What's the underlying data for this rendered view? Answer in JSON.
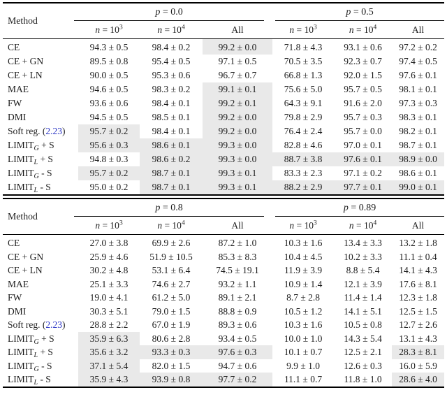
{
  "colors": {
    "highlight": "#e9e9e9",
    "link": "#2b35c5",
    "rule": "#000000",
    "background": "#ffffff"
  },
  "tables": [
    {
      "method_header": "Method",
      "groups": [
        {
          "sym": "p",
          "rest": "= 0.0"
        },
        {
          "sym": "p",
          "rest": "= 0.5"
        }
      ],
      "subcols": [
        {
          "sym": "n",
          "base": "= 10",
          "exp": "3"
        },
        {
          "sym": "n",
          "base": "= 10",
          "exp": "4"
        },
        {
          "label": "All"
        }
      ],
      "rows": [
        {
          "method": {
            "pre": "CE"
          },
          "cells": [
            {
              "v": "94.3 ± 0.5"
            },
            {
              "v": "98.4 ± 0.2"
            },
            {
              "v": "99.2 ± 0.0",
              "hl": true
            },
            {
              "v": "71.8 ± 4.3"
            },
            {
              "v": "93.1 ± 0.6"
            },
            {
              "v": "97.2 ± 0.2"
            }
          ]
        },
        {
          "method": {
            "pre": "CE + GN"
          },
          "cells": [
            {
              "v": "89.5 ± 0.8"
            },
            {
              "v": "95.4 ± 0.5"
            },
            {
              "v": "97.1 ± 0.5"
            },
            {
              "v": "70.5 ± 3.5"
            },
            {
              "v": "92.3 ± 0.7"
            },
            {
              "v": "97.4 ± 0.5"
            }
          ]
        },
        {
          "method": {
            "pre": "CE + LN"
          },
          "cells": [
            {
              "v": "90.0 ± 0.5"
            },
            {
              "v": "95.3 ± 0.6"
            },
            {
              "v": "96.7 ± 0.7"
            },
            {
              "v": "66.8 ± 1.3"
            },
            {
              "v": "92.0 ± 1.5"
            },
            {
              "v": "97.6 ± 0.1"
            }
          ]
        },
        {
          "method": {
            "pre": "MAE"
          },
          "cells": [
            {
              "v": "94.6 ± 0.5"
            },
            {
              "v": "98.3 ± 0.2"
            },
            {
              "v": "99.1 ± 0.1",
              "hl": true
            },
            {
              "v": "75.6 ± 5.0"
            },
            {
              "v": "95.7 ± 0.5"
            },
            {
              "v": "98.1 ± 0.1"
            }
          ]
        },
        {
          "method": {
            "pre": "FW"
          },
          "cells": [
            {
              "v": "93.6 ± 0.6"
            },
            {
              "v": "98.4 ± 0.1"
            },
            {
              "v": "99.2 ± 0.1",
              "hl": true
            },
            {
              "v": "64.3 ± 9.1"
            },
            {
              "v": "91.6 ± 2.0"
            },
            {
              "v": "97.3 ± 0.3"
            }
          ]
        },
        {
          "method": {
            "pre": "DMI"
          },
          "cells": [
            {
              "v": "94.5 ± 0.5"
            },
            {
              "v": "98.5 ± 0.1"
            },
            {
              "v": "99.2 ± 0.0",
              "hl": true
            },
            {
              "v": "79.8 ± 2.9"
            },
            {
              "v": "95.7 ± 0.3"
            },
            {
              "v": "98.3 ± 0.1"
            }
          ]
        },
        {
          "method": {
            "pre": "Soft reg. (",
            "link": "2.23",
            "post": ")"
          },
          "cells": [
            {
              "v": "95.7 ± 0.2",
              "hl": true
            },
            {
              "v": "98.4 ± 0.1"
            },
            {
              "v": "99.2 ± 0.0",
              "hl": true
            },
            {
              "v": "76.4 ± 2.4"
            },
            {
              "v": "95.7 ± 0.0"
            },
            {
              "v": "98.2 ± 0.1"
            }
          ]
        },
        {
          "method": {
            "pre": "LIMIT",
            "sub": "G",
            "post": " + S"
          },
          "cells": [
            {
              "v": "95.6 ± 0.3",
              "hl": true
            },
            {
              "v": "98.6 ± 0.1",
              "hl": true
            },
            {
              "v": "99.3 ± 0.0",
              "hl": true
            },
            {
              "v": "82.8 ± 4.6"
            },
            {
              "v": "97.0 ± 0.1"
            },
            {
              "v": "98.7 ± 0.1"
            }
          ]
        },
        {
          "method": {
            "pre": "LIMIT",
            "sub": "L",
            "post": " + S"
          },
          "cells": [
            {
              "v": "94.8 ± 0.3"
            },
            {
              "v": "98.6 ± 0.2",
              "hl": true
            },
            {
              "v": "99.3 ± 0.0",
              "hl": true
            },
            {
              "v": "88.7 ± 3.8",
              "hl": true
            },
            {
              "v": "97.6 ± 0.1",
              "hl": true
            },
            {
              "v": "98.9 ± 0.0",
              "hl": true
            }
          ]
        },
        {
          "method": {
            "pre": "LIMIT",
            "sub": "G",
            "post": " - S"
          },
          "cells": [
            {
              "v": "95.7 ± 0.2",
              "hl": true
            },
            {
              "v": "98.7 ± 0.1",
              "hl": true
            },
            {
              "v": "99.3 ± 0.1",
              "hl": true
            },
            {
              "v": "83.3 ± 2.3"
            },
            {
              "v": "97.1 ± 0.2"
            },
            {
              "v": "98.6 ± 0.1"
            }
          ]
        },
        {
          "method": {
            "pre": "LIMIT",
            "sub": "L",
            "post": " - S"
          },
          "cells": [
            {
              "v": "95.0 ± 0.2"
            },
            {
              "v": "98.7 ± 0.1",
              "hl": true
            },
            {
              "v": "99.3 ± 0.1",
              "hl": true
            },
            {
              "v": "88.2 ± 2.9",
              "hl": true
            },
            {
              "v": "97.7 ± 0.1",
              "hl": true
            },
            {
              "v": "99.0 ± 0.1",
              "hl": true
            }
          ]
        }
      ]
    },
    {
      "method_header": "Method",
      "groups": [
        {
          "sym": "p",
          "rest": "= 0.8"
        },
        {
          "sym": "p",
          "rest": "= 0.89"
        }
      ],
      "subcols": [
        {
          "sym": "n",
          "base": "= 10",
          "exp": "3"
        },
        {
          "sym": "n",
          "base": "= 10",
          "exp": "4"
        },
        {
          "label": "All"
        }
      ],
      "rows": [
        {
          "method": {
            "pre": "CE"
          },
          "cells": [
            {
              "v": "27.0 ± 3.8"
            },
            {
              "v": "69.9 ± 2.6"
            },
            {
              "v": "87.2 ± 1.0"
            },
            {
              "v": "10.3 ± 1.6"
            },
            {
              "v": "13.4 ± 3.3"
            },
            {
              "v": "13.2 ± 1.8"
            }
          ]
        },
        {
          "method": {
            "pre": "CE + GN"
          },
          "cells": [
            {
              "v": "25.9 ± 4.6"
            },
            {
              "v": "51.9 ± 10.5"
            },
            {
              "v": "85.3 ± 8.3"
            },
            {
              "v": "10.4 ± 4.5"
            },
            {
              "v": "10.2 ± 3.3"
            },
            {
              "v": "11.1 ± 0.4"
            }
          ]
        },
        {
          "method": {
            "pre": "CE + LN"
          },
          "cells": [
            {
              "v": "30.2 ± 4.8"
            },
            {
              "v": "53.1 ± 6.4"
            },
            {
              "v": "74.5 ± 19.1"
            },
            {
              "v": "11.9 ± 3.9"
            },
            {
              "v": "8.8 ± 5.4"
            },
            {
              "v": "14.1 ± 4.3"
            }
          ]
        },
        {
          "method": {
            "pre": "MAE"
          },
          "cells": [
            {
              "v": "25.1 ± 3.3"
            },
            {
              "v": "74.6 ± 2.7"
            },
            {
              "v": "93.2 ± 1.1"
            },
            {
              "v": "10.9 ± 1.4"
            },
            {
              "v": "12.1 ± 3.9"
            },
            {
              "v": "17.6 ± 8.1"
            }
          ]
        },
        {
          "method": {
            "pre": "FW"
          },
          "cells": [
            {
              "v": "19.0 ± 4.1"
            },
            {
              "v": "61.2 ± 5.0"
            },
            {
              "v": "89.1 ± 2.1"
            },
            {
              "v": "8.7 ± 2.8"
            },
            {
              "v": "11.4 ± 1.4"
            },
            {
              "v": "12.3 ± 1.8"
            }
          ]
        },
        {
          "method": {
            "pre": "DMI"
          },
          "cells": [
            {
              "v": "30.3 ± 5.1"
            },
            {
              "v": "79.0 ± 1.5"
            },
            {
              "v": "88.8 ± 0.9"
            },
            {
              "v": "10.5 ± 1.2"
            },
            {
              "v": "14.1 ± 5.1"
            },
            {
              "v": "12.5 ± 1.5"
            }
          ]
        },
        {
          "method": {
            "pre": "Soft reg. (",
            "link": "2.23",
            "post": ")"
          },
          "cells": [
            {
              "v": "28.8 ± 2.2"
            },
            {
              "v": "67.0 ± 1.9"
            },
            {
              "v": "89.3 ± 0.6"
            },
            {
              "v": "10.3 ± 1.6"
            },
            {
              "v": "10.5 ± 0.8"
            },
            {
              "v": "12.7 ± 2.6"
            }
          ]
        },
        {
          "method": {
            "pre": "LIMIT",
            "sub": "G",
            "post": " + S"
          },
          "cells": [
            {
              "v": "35.9 ± 6.3",
              "hl": true
            },
            {
              "v": "80.6 ± 2.8"
            },
            {
              "v": "93.4 ± 0.5"
            },
            {
              "v": "10.0 ± 1.0"
            },
            {
              "v": "14.3 ± 5.4"
            },
            {
              "v": "13.1 ± 4.3"
            }
          ]
        },
        {
          "method": {
            "pre": "LIMIT",
            "sub": "L",
            "post": " + S"
          },
          "cells": [
            {
              "v": "35.6 ± 3.2",
              "hl": true
            },
            {
              "v": "93.3 ± 0.3",
              "hl": true
            },
            {
              "v": "97.6 ± 0.3",
              "hl": true
            },
            {
              "v": "10.1 ± 0.7"
            },
            {
              "v": "12.5 ± 2.1"
            },
            {
              "v": "28.3 ± 8.1",
              "hl": true
            }
          ]
        },
        {
          "method": {
            "pre": "LIMIT",
            "sub": "G",
            "post": " - S"
          },
          "cells": [
            {
              "v": "37.1 ± 5.4",
              "hl": true
            },
            {
              "v": "82.0 ± 1.5"
            },
            {
              "v": "94.7 ± 0.6"
            },
            {
              "v": "9.9 ± 1.0"
            },
            {
              "v": "12.6 ± 0.3"
            },
            {
              "v": "16.0 ± 5.9"
            }
          ]
        },
        {
          "method": {
            "pre": "LIMIT",
            "sub": "L",
            "post": " - S"
          },
          "cells": [
            {
              "v": "35.9 ± 4.3",
              "hl": true
            },
            {
              "v": "93.9 ± 0.8",
              "hl": true
            },
            {
              "v": "97.7 ± 0.2",
              "hl": true
            },
            {
              "v": "11.1 ± 0.7"
            },
            {
              "v": "11.8 ± 1.0"
            },
            {
              "v": "28.6 ± 4.0",
              "hl": true
            }
          ]
        }
      ]
    }
  ]
}
